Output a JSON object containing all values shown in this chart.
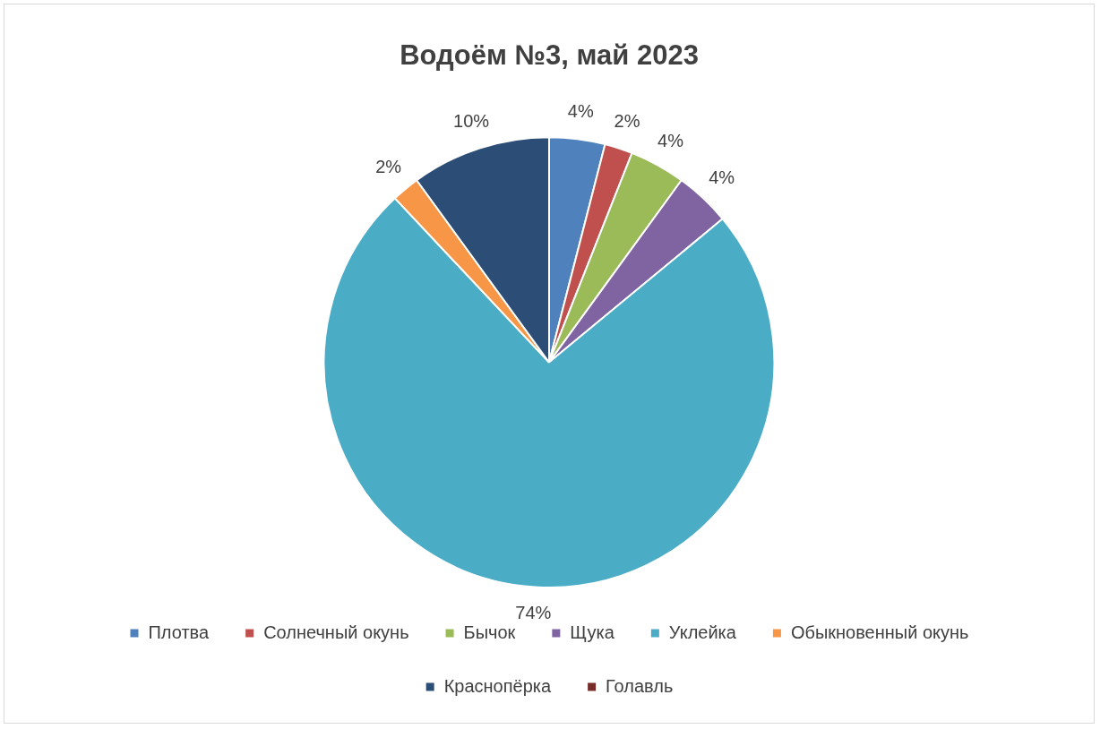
{
  "chart_data": {
    "type": "pie",
    "title": "Водоём №3, май 2023",
    "categories": [
      "Плотва",
      "Солнечный окунь",
      "Бычок",
      "Щука",
      "Уклейка",
      "Обыкновенный окунь",
      "Краснопёрка",
      "Голавль"
    ],
    "values": [
      4,
      2,
      4,
      4,
      74,
      2,
      10,
      0
    ],
    "colors": [
      "#4f81bd",
      "#c0504d",
      "#9bbb59",
      "#8064a2",
      "#4bacc6",
      "#f79646",
      "#2c4d75",
      "#772c2a"
    ],
    "value_labels": [
      "4%",
      "2%",
      "4%",
      "4%",
      "74%",
      "2%",
      "10%",
      null
    ],
    "legend": "bottom"
  }
}
